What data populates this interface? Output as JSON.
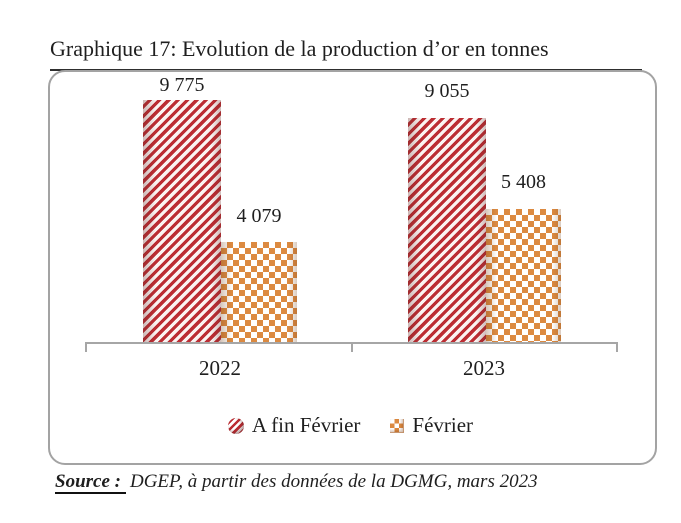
{
  "chart_data": {
    "type": "bar",
    "title": "Graphique 17: Evolution de la production d’or en tonnes",
    "categories": [
      "2022",
      "2023"
    ],
    "series": [
      {
        "name": "A fin Février",
        "values": [
          9775,
          9055
        ],
        "value_labels": [
          "9 775",
          "9 055"
        ],
        "pattern": "red-diagonal-stripes",
        "color": "#bc2d33"
      },
      {
        "name": "Février",
        "values": [
          4079,
          5408
        ],
        "value_labels": [
          "4 079",
          "5 408"
        ],
        "pattern": "orange-checkerboard",
        "color": "#dc8a41"
      }
    ],
    "xlabel": "",
    "ylabel": "",
    "ylim": [
      0,
      10900
    ],
    "grid": false,
    "legend_position": "bottom"
  },
  "legend": {
    "items": [
      {
        "label": "A fin Février",
        "marker": "striped-sphere-icon"
      },
      {
        "label": "Février",
        "marker": "checkered-cube-icon"
      }
    ]
  },
  "source": {
    "prefix": "Source :",
    "text": "DGEP, à partir des données de la DGMG, mars 2023"
  },
  "colors": {
    "stripe_red": "#bc2d33",
    "checker_orange": "#dc8a41",
    "axis_gray": "#a6a6a6",
    "text": "#1f1f1f"
  }
}
